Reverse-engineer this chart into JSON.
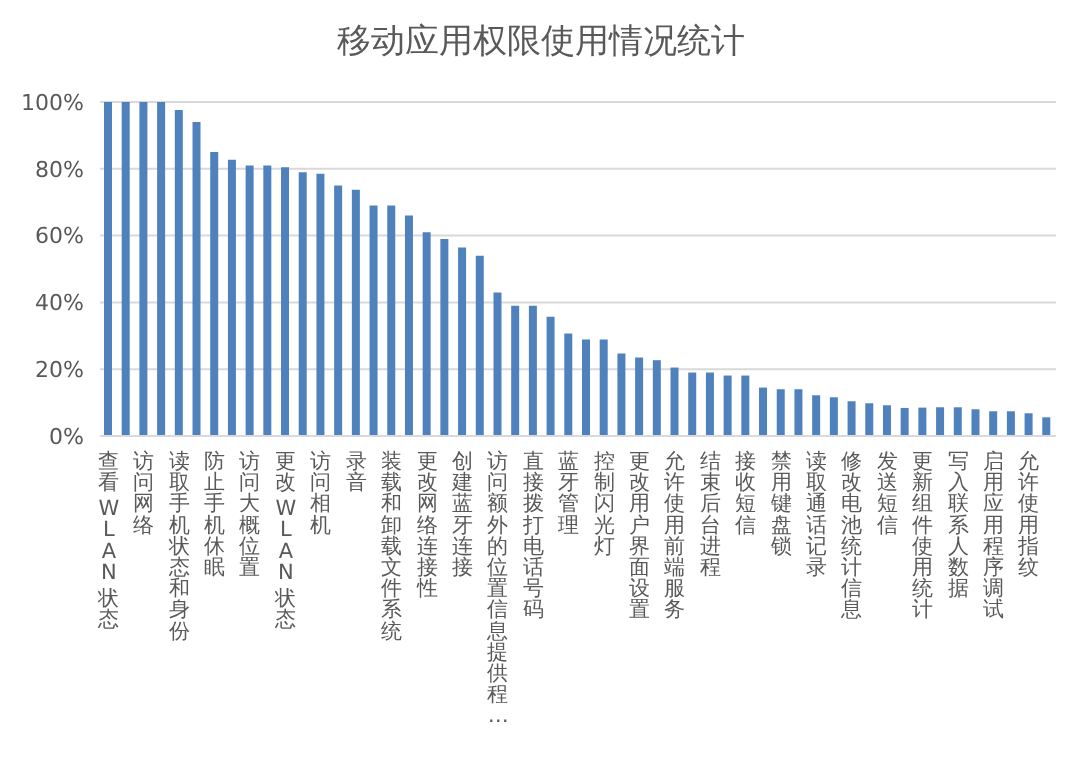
{
  "chart_data": {
    "type": "bar",
    "title": "移动应用权限使用情况统计",
    "categories": [
      "查看 WLAN 状态",
      null,
      "访问网络",
      null,
      "读取手机状态和身份",
      null,
      "防止手机休眠",
      null,
      "访问大概位置",
      null,
      "更改 WLAN 状态",
      null,
      "访问相机",
      null,
      "录音",
      null,
      "装载和卸载文件系统",
      null,
      "更改网络连接性",
      null,
      "创建蓝牙连接",
      null,
      "访问额外的位置信息提供程…",
      null,
      "直接拨打电话号码",
      null,
      "蓝牙管理",
      null,
      "控制闪光灯",
      null,
      "更改用户界面设置",
      null,
      "允许使用前端服务",
      null,
      "结束后台进程",
      null,
      "接收短信",
      null,
      "禁用键盘锁",
      null,
      "读取通话记录",
      null,
      "修改电池统计信息",
      null,
      "发送短信",
      null,
      "更新组件使用统计",
      null,
      "写入联系人数据",
      null,
      "启用应用程序调试",
      null,
      "允许使用指纹",
      null
    ],
    "values": [
      100,
      100,
      100,
      100,
      97.6,
      94,
      85,
      82.7,
      81,
      81,
      80.5,
      79,
      78.5,
      75,
      73.7,
      69,
      69,
      66,
      61,
      59,
      56.4,
      54,
      43,
      39,
      39,
      35.7,
      30.7,
      28.9,
      28.9,
      24.7,
      23.5,
      22.7,
      20.5,
      19,
      19,
      18.1,
      18.1,
      14.5,
      14,
      14,
      12.2,
      11.6,
      10.4,
      9.8,
      9.2,
      8.4,
      8.5,
      8.6,
      8.6,
      8,
      7.4,
      7.4,
      6.8,
      5.6
    ],
    "color": "#4f81bd",
    "ylim": [
      0,
      100
    ],
    "yticks": [
      {
        "value": 0,
        "label": "0%"
      },
      {
        "value": 20,
        "label": "20%"
      },
      {
        "value": 40,
        "label": "40%"
      },
      {
        "value": 60,
        "label": "60%"
      },
      {
        "value": 80,
        "label": "80%"
      },
      {
        "value": 100,
        "label": "100%"
      }
    ],
    "grid": "y"
  }
}
